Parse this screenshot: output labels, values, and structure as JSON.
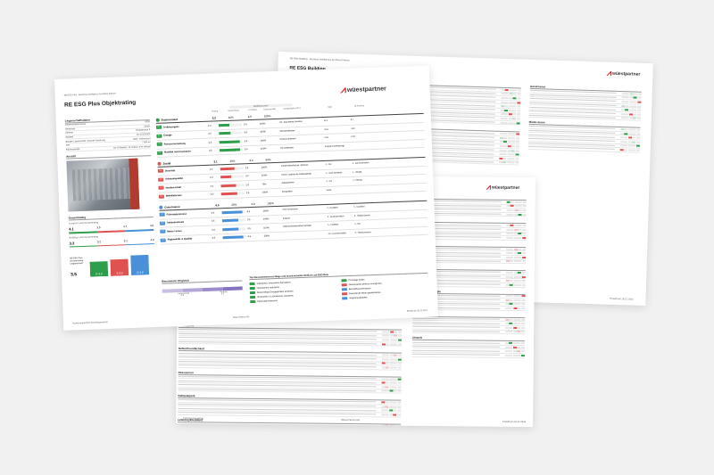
{
  "back_sheet": {
    "title": "RE ESG Building",
    "header": "RE ESG Building · Business Intelligence by Wüest Partner",
    "logo": "wüestpartner",
    "sections": [
      "Sozial",
      "Umwelt",
      "Governance",
      "Lebenszyklus",
      "Risiken",
      "Mieter-Innen",
      "Investitionsmodul"
    ],
    "footer": "Erstellt am 18.12.2024"
  },
  "middle_sheet": {
    "logo": "wüestpartner",
    "sections": [
      "Legende",
      "Gesundheit",
      "Governance",
      "Gesamtbewertung",
      "Klimaschutz / Energie",
      "Biodiversität",
      "Umwelt",
      "Arbeitsplatz",
      "Nutzerfreundlichkeit",
      "Ressourcen",
      "Gebäudepark",
      "Lebenszyklusbilanz"
    ],
    "footer_left": "ESG Benchmarking",
    "footer_center": "Wüest Partner AG",
    "footer_right": "Erstellt am 18.12.2024"
  },
  "front_sheet": {
    "header": "RE ESG Plus · Business Intelligence by Wüest Partner",
    "title": "RE ESG Plus Objektrating",
    "logo": "wüestpartner",
    "building_level": "Building Level",
    "column_headers": [
      "Rating",
      "Gewichtung",
      "+ Portfolio",
      "Datenqualität",
      "Ausgewählte KPI´s",
      "Wert",
      "Ø Portfolio"
    ],
    "info_title": "Liegenschaftsdaten",
    "info_rows": [
      {
        "label": "Liegenschaftsnummer",
        "value": "0003"
      },
      {
        "label": "Gemeinde",
        "value": "Zürich"
      },
      {
        "label": "Adresse",
        "value": "Hauptstrasse 5"
      },
      {
        "label": "Stadtteil",
        "value": "CH 1510/1500"
      },
      {
        "label": "Baujahr Liegenschaft / Aktuelle Sanierung",
        "value": "1965 / Teilerneuert"
      },
      {
        "label": "miet",
        "value": "7.500 m²"
      },
      {
        "label": "Flächenanteile",
        "value": "81 % Wohnen, 11 % Büro, 8 % Verkauf"
      }
    ],
    "ansicht_label": "Ansicht",
    "gesamt": {
      "title": "Gesamtrating",
      "location_label": "Location Level Gesamtrating",
      "location_values": [
        "4.1",
        "3.5",
        "4.7",
        "4.0"
      ],
      "building_label": "Building Level Gesamtrating",
      "building_values": [
        "3.3",
        "3.2",
        "3.1",
        "4.0"
      ],
      "plus_label": "RE ESG Plus Gesamtrating Liegenschaft",
      "plus_value": "3.5",
      "bar_values": [
        3.0,
        3.3,
        4.0
      ],
      "bar_labels": [
        "E 3.0",
        "S 3.3",
        "G 4.0"
      ],
      "bar_colors": [
        "#2e9e4a",
        "#e05252",
        "#4a90d9"
      ]
    },
    "pillars": [
      {
        "name": "Environment",
        "rating": "3.2",
        "weight": "40%",
        "portfolio": "3.5",
        "quality": "100%",
        "color": "#2e9e4a",
        "light": "#bfe0c5",
        "items": [
          {
            "name": "Treibhausgase",
            "rating": "2.4",
            "level": 0.48,
            "portfolio": "3.6",
            "quality": "100%"
          },
          {
            "name": "Energie",
            "rating": "2.5",
            "level": 0.5,
            "portfolio": "3.4",
            "quality": "100%"
          },
          {
            "name": "Ressourcennutzung",
            "rating": "4.5",
            "level": 0.9,
            "portfolio": "3.4",
            "quality": "100%"
          },
          {
            "name": "Mobilität und Anschauen",
            "rating": "4.5",
            "level": 0.9,
            "portfolio": "3.6",
            "quality": "100%"
          }
        ],
        "kpis": [
          {
            "name": "CO₂-Equivalente Emission",
            "value": "22.2",
            "avg": "8.7"
          },
          {
            "name": "Heizwärmebedarf",
            "value": "45.8",
            "avg": "42.6"
          },
          {
            "name": "Ressourcenbedarf",
            "value": "0.06",
            "avg": "0.03"
          },
          {
            "name": "ÖV-Güteklasse",
            "value": "B (gute Erschliessung)",
            "avg": ""
          }
        ]
      },
      {
        "name": "Sozial",
        "rating": "3.1",
        "weight": "40%",
        "portfolio": "3.2",
        "quality": "94%",
        "color": "#e05252",
        "light": "#f1c1c1",
        "items": [
          {
            "name": "Diversität",
            "rating": "3.0",
            "level": 0.6,
            "portfolio": "3.3",
            "quality": "100%"
          },
          {
            "name": "Gebäudequalität",
            "rating": "2.4",
            "level": 0.48,
            "portfolio": "3.0",
            "quality": "100%"
          },
          {
            "name": "Nachbarschaft",
            "rating": "3.3",
            "level": 0.66,
            "portfolio": "2.5",
            "quality": "75%"
          },
          {
            "name": "Mobilitätsraum",
            "rating": "3.5",
            "level": 0.7,
            "portfolio": "3.6",
            "quality": "100%"
          }
        ],
        "kpis": [
          {
            "name": "Soziale Wohnflächen / Wohnen",
            "value": "4 - Gut",
            "avg": "3 - Durchschnittlich"
          },
          {
            "name": "Thermi. Qualität der Gebäudehülle",
            "value": "3 - Gute Sicherheit",
            "avg": "4 - Hilsstig"
          },
          {
            "name": "Zugänglichkeit",
            "value": "4 - Gut",
            "avg": "4 - Hilsstig"
          },
          {
            "name": "Ertragslabel",
            "value": "Keine",
            "avg": ""
          }
        ]
      },
      {
        "name": "Governance",
        "rating": "4.0",
        "weight": "20%",
        "portfolio": "4.0",
        "quality": "100%",
        "color": "#4a90d9",
        "light": "#bfd6ef",
        "items": [
          {
            "name": "Führungsprozesse",
            "rating": "4.5",
            "level": 0.9,
            "portfolio": "4.3",
            "quality": "100%"
          },
          {
            "name": "Gebäudeeinsatz",
            "rating": "3.5",
            "level": 0.7,
            "portfolio": "3.6",
            "quality": "100%"
          },
          {
            "name": "Mieter / Innen",
            "rating": "3.4",
            "level": 0.68,
            "portfolio": "3.5",
            "quality": "100%"
          },
          {
            "name": "Regionalität, & Qualität",
            "rating": "4.5",
            "level": 0.9,
            "portfolio": "4.5",
            "quality": "100%"
          }
        ],
        "kpis": [
          {
            "name": "ESG Governance",
            "value": "5 - Exzellent",
            "avg": "5 - Exzellent"
          },
          {
            "name": "Zustand",
            "value": "3 - Durchschnittlich",
            "avg": "3 - Überdurchschn."
          },
          {
            "name": "Elektrochs/Verbundene Verträge",
            "value": "5 - Exzellent",
            "avg": "4 - Gut"
          },
          {
            "name": "",
            "value": "2.0 - Durchschnittlich",
            "avg": "3 - Überdurchschn."
          }
        ]
      }
    ],
    "benchmark_title": "Benchmark Vergleich",
    "benchmark_labels": [
      "Liegenschaft",
      "Portfolio"
    ],
    "benchmark_values": [
      "3.8",
      "4.2"
    ],
    "massnahmen_title": "Top Massnahmenvorschläge und massiverhaltler Einfluss auf ESG-Rate",
    "massnahmen": [
      {
        "text": "Substitution, erneuerbare Fernwärme",
        "color": "#2e9e4a"
      },
      {
        "text": "PV-Anlage prüfen",
        "color": "#2e9e4a"
      },
      {
        "text": "Heizsubstanz reduzieren",
        "color": "#2e9e4a"
      },
      {
        "text": "Gemeinsames Wohnen ermöglichen",
        "color": "#e05252"
      },
      {
        "text": "Dreischeibige Energiegeräten einsetzen",
        "color": "#2e9e4a"
      },
      {
        "text": "Beschaffung verbessern",
        "color": "#4a90d9"
      },
      {
        "text": "Strukturelle CO₂-Emissionen reduzieren",
        "color": "#2e9e4a"
      },
      {
        "text": "Diversität der Mieter gewährleisten",
        "color": "#e05252"
      },
      {
        "text": "Dämmung verbessern",
        "color": "#2e9e4a"
      },
      {
        "text": "Vergütung gestalten",
        "color": "#4a90d9"
      }
    ],
    "footer_left": "Auswertungsprüfmit Einzelliegenschaft",
    "footer_center": "Wüest Partner AG",
    "footer_right": "Erstellt am 18.12.2024"
  }
}
